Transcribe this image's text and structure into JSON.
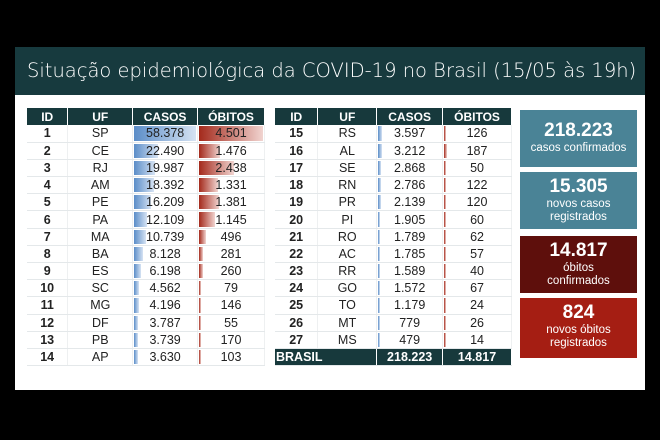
{
  "title": "Situação epidemiológica da COVID-19 no Brasil (15/05 às 19h)",
  "columns": [
    "ID",
    "UF",
    "CASOS",
    "ÓBITOS"
  ],
  "left_rows": [
    [
      "1",
      "SP",
      "58.378",
      "4.501"
    ],
    [
      "2",
      "CE",
      "22.490",
      "1.476"
    ],
    [
      "3",
      "RJ",
      "19.987",
      "2.438"
    ],
    [
      "4",
      "AM",
      "18.392",
      "1.331"
    ],
    [
      "5",
      "PE",
      "16.209",
      "1.381"
    ],
    [
      "6",
      "PA",
      "12.109",
      "1.145"
    ],
    [
      "7",
      "MA",
      "10.739",
      "496"
    ],
    [
      "8",
      "BA",
      "8.128",
      "281"
    ],
    [
      "9",
      "ES",
      "6.198",
      "260"
    ],
    [
      "10",
      "SC",
      "4.562",
      "79"
    ],
    [
      "11",
      "MG",
      "4.196",
      "146"
    ],
    [
      "12",
      "DF",
      "3.787",
      "55"
    ],
    [
      "13",
      "PB",
      "3.739",
      "170"
    ],
    [
      "14",
      "AP",
      "3.630",
      "103"
    ]
  ],
  "right_rows": [
    [
      "15",
      "RS",
      "3.597",
      "126"
    ],
    [
      "16",
      "AL",
      "3.212",
      "187"
    ],
    [
      "17",
      "SE",
      "2.868",
      "50"
    ],
    [
      "18",
      "RN",
      "2.786",
      "122"
    ],
    [
      "19",
      "PR",
      "2.139",
      "120"
    ],
    [
      "20",
      "PI",
      "1.905",
      "60"
    ],
    [
      "21",
      "RO",
      "1.789",
      "62"
    ],
    [
      "22",
      "AC",
      "1.785",
      "57"
    ],
    [
      "23",
      "RR",
      "1.589",
      "40"
    ],
    [
      "24",
      "GO",
      "1.572",
      "67"
    ],
    [
      "25",
      "TO",
      "1.179",
      "24"
    ],
    [
      "26",
      "MT",
      "779",
      "26"
    ],
    [
      "27",
      "MS",
      "479",
      "14"
    ]
  ],
  "total": {
    "label": "BRASIL",
    "casos": "218.223",
    "obitos": "14.817"
  },
  "cards": [
    {
      "number": "218.223",
      "label": "casos confirmados",
      "color": "#4a8396"
    },
    {
      "number": "15.305",
      "label": "novos casos registrados",
      "color": "#4a8396"
    },
    {
      "number": "14.817",
      "label": "óbitos confirmados",
      "color": "#5e0f0c"
    },
    {
      "number": "824",
      "label": "novos óbitos registrados",
      "color": "#a51e13"
    }
  ],
  "colors": {
    "header": "#173a3e",
    "casos_bar": "#5b8dc8",
    "obitos_bar": "#a42a1c"
  }
}
